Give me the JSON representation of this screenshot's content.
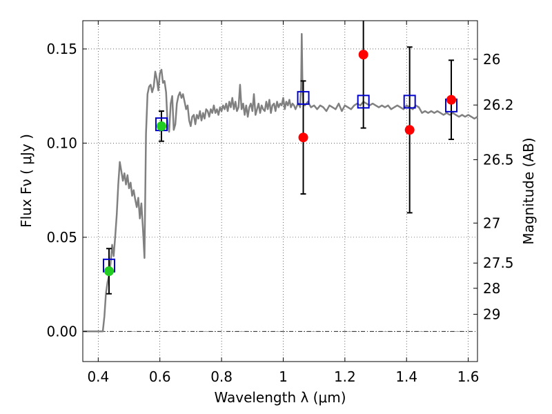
{
  "chart_data": {
    "type": "scatter",
    "xlabel": "Wavelength  λ (μm)",
    "ylabel": "Flux  Fν ( μJy )",
    "y2label": "Magnitude (AB)",
    "xlim": [
      0.35,
      1.63
    ],
    "ylim": [
      -0.016,
      0.165
    ],
    "grid": true,
    "x_ticks": [
      0.4,
      0.6,
      0.8,
      1.0,
      1.2,
      1.4,
      1.6
    ],
    "x_tick_labels": [
      "0.4",
      "0.6",
      "0.8",
      "1",
      "1.2",
      "1.4",
      "1.6"
    ],
    "y_ticks": [
      0.0,
      0.05,
      0.1,
      0.15
    ],
    "y_tick_labels": [
      "0.00",
      "0.05",
      "0.10",
      "0.15"
    ],
    "mag_ticks": [
      26,
      26.2,
      26.5,
      27,
      27.5,
      28,
      29
    ],
    "mag_tick_labels": [
      "26",
      "26.2",
      "26.5",
      "27",
      "27.5",
      "28",
      "29"
    ],
    "model_spectrum": {
      "color": "#808080",
      "points": [
        [
          0.35,
          0.0
        ],
        [
          0.41,
          0.0
        ],
        [
          0.415,
          0.0
        ],
        [
          0.42,
          0.008
        ],
        [
          0.425,
          0.02
        ],
        [
          0.43,
          0.026
        ],
        [
          0.435,
          0.03
        ],
        [
          0.44,
          0.036
        ],
        [
          0.445,
          0.046
        ],
        [
          0.45,
          0.04
        ],
        [
          0.455,
          0.05
        ],
        [
          0.46,
          0.062
        ],
        [
          0.465,
          0.078
        ],
        [
          0.47,
          0.09
        ],
        [
          0.475,
          0.085
        ],
        [
          0.48,
          0.08
        ],
        [
          0.485,
          0.084
        ],
        [
          0.49,
          0.078
        ],
        [
          0.495,
          0.083
        ],
        [
          0.5,
          0.076
        ],
        [
          0.505,
          0.079
        ],
        [
          0.51,
          0.072
        ],
        [
          0.515,
          0.075
        ],
        [
          0.52,
          0.07
        ],
        [
          0.525,
          0.066
        ],
        [
          0.53,
          0.071
        ],
        [
          0.535,
          0.06
        ],
        [
          0.54,
          0.068
        ],
        [
          0.545,
          0.055
        ],
        [
          0.55,
          0.039
        ],
        [
          0.555,
          0.105
        ],
        [
          0.56,
          0.126
        ],
        [
          0.565,
          0.13
        ],
        [
          0.57,
          0.131
        ],
        [
          0.575,
          0.127
        ],
        [
          0.58,
          0.13
        ],
        [
          0.585,
          0.138
        ],
        [
          0.59,
          0.134
        ],
        [
          0.595,
          0.128
        ],
        [
          0.6,
          0.137
        ],
        [
          0.605,
          0.139
        ],
        [
          0.61,
          0.132
        ],
        [
          0.615,
          0.133
        ],
        [
          0.62,
          0.127
        ],
        [
          0.625,
          0.11
        ],
        [
          0.63,
          0.106
        ],
        [
          0.635,
          0.121
        ],
        [
          0.64,
          0.125
        ],
        [
          0.645,
          0.107
        ],
        [
          0.65,
          0.11
        ],
        [
          0.655,
          0.121
        ],
        [
          0.66,
          0.125
        ],
        [
          0.665,
          0.127
        ],
        [
          0.67,
          0.124
        ],
        [
          0.675,
          0.126
        ],
        [
          0.68,
          0.122
        ],
        [
          0.685,
          0.118
        ],
        [
          0.69,
          0.12
        ],
        [
          0.695,
          0.112
        ],
        [
          0.7,
          0.109
        ],
        [
          0.705,
          0.114
        ],
        [
          0.71,
          0.115
        ],
        [
          0.715,
          0.11
        ],
        [
          0.72,
          0.115
        ],
        [
          0.725,
          0.113
        ],
        [
          0.73,
          0.117
        ],
        [
          0.735,
          0.112
        ],
        [
          0.74,
          0.116
        ],
        [
          0.745,
          0.113
        ],
        [
          0.75,
          0.118
        ],
        [
          0.755,
          0.117
        ],
        [
          0.76,
          0.114
        ],
        [
          0.765,
          0.118
        ],
        [
          0.77,
          0.116
        ],
        [
          0.775,
          0.12
        ],
        [
          0.78,
          0.116
        ],
        [
          0.785,
          0.118
        ],
        [
          0.79,
          0.115
        ],
        [
          0.795,
          0.119
        ],
        [
          0.8,
          0.117
        ],
        [
          0.805,
          0.12
        ],
        [
          0.81,
          0.118
        ],
        [
          0.815,
          0.121
        ],
        [
          0.82,
          0.117
        ],
        [
          0.825,
          0.122
        ],
        [
          0.83,
          0.119
        ],
        [
          0.835,
          0.124
        ],
        [
          0.84,
          0.118
        ],
        [
          0.845,
          0.122
        ],
        [
          0.85,
          0.117
        ],
        [
          0.855,
          0.119
        ],
        [
          0.86,
          0.131
        ],
        [
          0.865,
          0.118
        ],
        [
          0.87,
          0.121
        ],
        [
          0.875,
          0.115
        ],
        [
          0.88,
          0.12
        ],
        [
          0.885,
          0.114
        ],
        [
          0.89,
          0.119
        ],
        [
          0.895,
          0.121
        ],
        [
          0.9,
          0.117
        ],
        [
          0.905,
          0.126
        ],
        [
          0.91,
          0.115
        ],
        [
          0.915,
          0.118
        ],
        [
          0.92,
          0.121
        ],
        [
          0.925,
          0.116
        ],
        [
          0.93,
          0.12
        ],
        [
          0.935,
          0.118
        ],
        [
          0.94,
          0.117
        ],
        [
          0.945,
          0.122
        ],
        [
          0.95,
          0.118
        ],
        [
          0.955,
          0.123
        ],
        [
          0.96,
          0.116
        ],
        [
          0.965,
          0.12
        ],
        [
          0.97,
          0.121
        ],
        [
          0.975,
          0.117
        ],
        [
          0.98,
          0.122
        ],
        [
          0.985,
          0.119
        ],
        [
          0.99,
          0.121
        ],
        [
          0.995,
          0.12
        ],
        [
          1.0,
          0.124
        ],
        [
          1.005,
          0.118
        ],
        [
          1.01,
          0.122
        ],
        [
          1.015,
          0.12
        ],
        [
          1.02,
          0.123
        ],
        [
          1.025,
          0.119
        ],
        [
          1.03,
          0.121
        ],
        [
          1.035,
          0.12
        ],
        [
          1.04,
          0.118
        ],
        [
          1.045,
          0.12
        ],
        [
          1.05,
          0.121
        ],
        [
          1.055,
          0.119
        ],
        [
          1.058,
          0.13
        ],
        [
          1.06,
          0.158
        ],
        [
          1.062,
          0.135
        ],
        [
          1.065,
          0.121
        ],
        [
          1.07,
          0.12
        ],
        [
          1.08,
          0.122
        ],
        [
          1.09,
          0.119
        ],
        [
          1.1,
          0.12
        ],
        [
          1.11,
          0.118
        ],
        [
          1.12,
          0.12
        ],
        [
          1.13,
          0.119
        ],
        [
          1.14,
          0.117
        ],
        [
          1.15,
          0.12
        ],
        [
          1.16,
          0.119
        ],
        [
          1.17,
          0.118
        ],
        [
          1.18,
          0.121
        ],
        [
          1.19,
          0.117
        ],
        [
          1.2,
          0.12
        ],
        [
          1.21,
          0.119
        ],
        [
          1.22,
          0.118
        ],
        [
          1.23,
          0.12
        ],
        [
          1.24,
          0.121
        ],
        [
          1.25,
          0.12
        ],
        [
          1.26,
          0.122
        ],
        [
          1.27,
          0.121
        ],
        [
          1.28,
          0.12
        ],
        [
          1.29,
          0.121
        ],
        [
          1.3,
          0.12
        ],
        [
          1.31,
          0.119
        ],
        [
          1.32,
          0.12
        ],
        [
          1.33,
          0.119
        ],
        [
          1.34,
          0.12
        ],
        [
          1.35,
          0.118
        ],
        [
          1.36,
          0.119
        ],
        [
          1.37,
          0.12
        ],
        [
          1.38,
          0.119
        ],
        [
          1.39,
          0.118
        ],
        [
          1.4,
          0.12
        ],
        [
          1.41,
          0.119
        ],
        [
          1.42,
          0.118
        ],
        [
          1.43,
          0.12
        ],
        [
          1.44,
          0.119
        ],
        [
          1.45,
          0.116
        ],
        [
          1.46,
          0.117
        ],
        [
          1.47,
          0.116
        ],
        [
          1.48,
          0.117
        ],
        [
          1.49,
          0.116
        ],
        [
          1.5,
          0.117
        ],
        [
          1.51,
          0.116
        ],
        [
          1.52,
          0.115
        ],
        [
          1.53,
          0.116
        ],
        [
          1.54,
          0.115
        ],
        [
          1.55,
          0.116
        ],
        [
          1.56,
          0.115
        ],
        [
          1.57,
          0.114
        ],
        [
          1.58,
          0.115
        ],
        [
          1.59,
          0.114
        ],
        [
          1.6,
          0.115
        ],
        [
          1.61,
          0.114
        ],
        [
          1.62,
          0.113
        ],
        [
          1.63,
          0.114
        ]
      ]
    },
    "series": [
      {
        "marker": "square",
        "color": "#0000cc",
        "x": [
          0.435,
          0.605,
          1.065,
          1.26,
          1.41,
          1.545
        ],
        "y": [
          0.035,
          0.11,
          0.124,
          0.122,
          0.122,
          0.12
        ]
      },
      {
        "marker": "circle",
        "color": "#22cc22",
        "x": [
          0.435,
          0.605
        ],
        "y": [
          0.032,
          0.109
        ],
        "yerr": [
          0.012,
          0.008
        ]
      },
      {
        "marker": "circle",
        "color": "#ff0000",
        "x": [
          1.065,
          1.26,
          1.41,
          1.545
        ],
        "y": [
          0.103,
          0.147,
          0.107,
          0.123
        ],
        "yerr": [
          0.03,
          0.039,
          0.044,
          0.021
        ]
      }
    ]
  }
}
